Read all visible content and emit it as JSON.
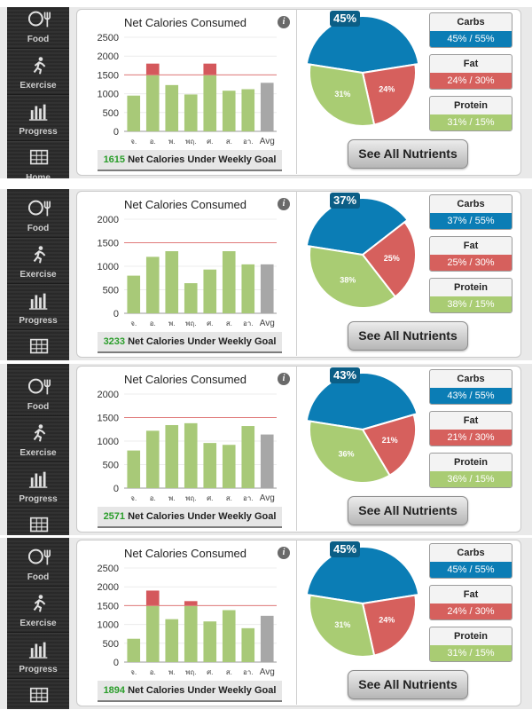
{
  "nav": [
    "Food",
    "Exercise",
    "Progress",
    "Home"
  ],
  "colors": {
    "green": "#a8c978",
    "over": "#d4585c",
    "avg": "#a7a7a7",
    "goal_line": "#e07a7a",
    "carbs": "#0b7db5",
    "fat": "#d6605d",
    "protein": "#a9cc73"
  },
  "common": {
    "chart_title": "Net Calories Consumed",
    "info_icon": "i",
    "summary_label": "Net Calories Under Weekly Goal",
    "see_all": "See All Nutrients",
    "carbs_label": "Carbs",
    "fat_label": "Fat",
    "protein_label": "Protein",
    "days": [
      "จ.",
      "อ.",
      "พ.",
      "พฤ.",
      "ศ.",
      "ส.",
      "อา.",
      "Avg"
    ],
    "y_ticks": [
      "2500",
      "2000",
      "1500",
      "1000",
      "500",
      "0"
    ],
    "y_ticks_alt": [
      "2000",
      "1500",
      "1000",
      "500",
      "0"
    ]
  },
  "panels": [
    {
      "under": "1615",
      "carbs": "45% / 55%",
      "fat": "24% / 30%",
      "protein": "31% / 15%",
      "pie": {
        "carbs": "45%",
        "fat": "24%",
        "protein": "31%"
      }
    },
    {
      "under": "3233",
      "carbs": "37% / 55%",
      "fat": "25% / 30%",
      "protein": "38% / 15%",
      "pie": {
        "carbs": "37%",
        "fat": "25%",
        "protein": "38%"
      }
    },
    {
      "under": "2571",
      "carbs": "43% / 55%",
      "fat": "21% / 30%",
      "protein": "36% / 15%",
      "pie": {
        "carbs": "43%",
        "fat": "21%",
        "protein": "36%"
      }
    },
    {
      "under": "1894",
      "carbs": "45% / 55%",
      "fat": "24% / 30%",
      "protein": "31% / 15%",
      "pie": {
        "carbs": "45%",
        "fat": "24%",
        "protein": "31%"
      }
    }
  ],
  "chart_data": [
    {
      "type": "bar",
      "title": "Net Calories Consumed",
      "categories": [
        "จ.",
        "อ.",
        "พ.",
        "พฤ.",
        "ศ.",
        "ส.",
        "อา.",
        "Avg"
      ],
      "ylim": [
        0,
        2500
      ],
      "goal": 1500,
      "values": [
        950,
        1800,
        1230,
        980,
        1800,
        1080,
        1120,
        1290
      ]
    },
    {
      "type": "bar",
      "title": "Net Calories Consumed",
      "categories": [
        "จ.",
        "อ.",
        "พ.",
        "พฤ.",
        "ศ.",
        "ส.",
        "อา.",
        "Avg"
      ],
      "ylim": [
        0,
        2000
      ],
      "goal": 1500,
      "values": [
        800,
        1200,
        1320,
        640,
        930,
        1320,
        1040,
        1040
      ]
    },
    {
      "type": "bar",
      "title": "Net Calories Consumed",
      "categories": [
        "จ.",
        "อ.",
        "พ.",
        "พฤ.",
        "ศ.",
        "ส.",
        "อา.",
        "Avg"
      ],
      "ylim": [
        0,
        2000
      ],
      "goal": 1500,
      "values": [
        800,
        1220,
        1340,
        1380,
        960,
        920,
        1320,
        1140
      ]
    },
    {
      "type": "bar",
      "title": "Net Calories Consumed",
      "categories": [
        "จ.",
        "อ.",
        "พ.",
        "พฤ.",
        "ศ.",
        "ส.",
        "อา.",
        "Avg"
      ],
      "ylim": [
        0,
        2500
      ],
      "goal": 1500,
      "values": [
        620,
        1900,
        1140,
        1620,
        1080,
        1380,
        900,
        1230
      ]
    },
    {
      "type": "pie",
      "categories": [
        "Carbs",
        "Fat",
        "Protein"
      ],
      "values": [
        45,
        24,
        31
      ]
    },
    {
      "type": "pie",
      "categories": [
        "Carbs",
        "Fat",
        "Protein"
      ],
      "values": [
        37,
        25,
        38
      ]
    },
    {
      "type": "pie",
      "categories": [
        "Carbs",
        "Fat",
        "Protein"
      ],
      "values": [
        43,
        21,
        36
      ]
    },
    {
      "type": "pie",
      "categories": [
        "Carbs",
        "Fat",
        "Protein"
      ],
      "values": [
        45,
        24,
        31
      ]
    }
  ]
}
